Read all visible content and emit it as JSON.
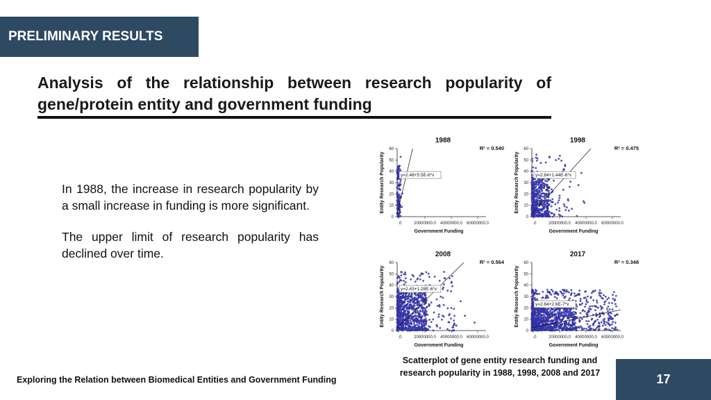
{
  "section_tag": "PRELIMINARY RESULTS",
  "title": "Analysis of the relationship between research popularity of gene/protein entity and government funding",
  "paragraphs": [
    "In 1988, the increase in research popularity by a small increase in funding is more significant.",
    "The upper limit of research popularity has declined over time."
  ],
  "caption": "Scatterplot of gene entity research funding and research popularity in 1988, 1998, 2008 and 2017",
  "footer": "Exploring the Relation between Biomedical Entities and Government Funding",
  "page_number": "17",
  "colors": {
    "accent": "#2e4a62",
    "points": "#3b3bb3"
  },
  "chart_data": [
    {
      "type": "scatter",
      "title": "1988",
      "r2": "R² = 0.540",
      "equation": "y=2.48+5.5E-6*x",
      "xlabel": "Government Funding",
      "ylabel": "Entity Research Popularity",
      "xticks": [
        ".0",
        "20000000.0",
        "40000000.0",
        "60000000.0"
      ],
      "yticks": [
        "0",
        "10",
        "20",
        "30",
        "40",
        "50",
        "60"
      ],
      "xlim": [
        0,
        60000000
      ],
      "ylim": [
        0,
        60
      ],
      "fit": {
        "intercept": 2.48,
        "slope": 5.5e-06
      },
      "clusters": [
        {
          "n": 130,
          "xmax": 2500000,
          "ymax": 45
        },
        {
          "n": 12,
          "xmax": 5000000,
          "ymax": 60
        }
      ]
    },
    {
      "type": "scatter",
      "title": "1998",
      "r2": "R² = 0.475",
      "equation": "y=2.64+1.44E-6*x",
      "xlabel": "Government Funding",
      "ylabel": "Entity Research Popularity",
      "xticks": [
        ".0",
        "20000000.0",
        "40000000.0",
        "60000000.0"
      ],
      "yticks": [
        "0",
        "10",
        "20",
        "30",
        "40",
        "50",
        "60"
      ],
      "xlim": [
        0,
        60000000
      ],
      "ylim": [
        0,
        60
      ],
      "fit": {
        "intercept": 2.64,
        "slope": 1.44e-06
      },
      "clusters": [
        {
          "n": 420,
          "xmax": 12000000,
          "ymax": 35
        },
        {
          "n": 120,
          "xmax": 25000000,
          "ymax": 55
        },
        {
          "n": 10,
          "xmax": 45000000,
          "ymax": 45
        }
      ]
    },
    {
      "type": "scatter",
      "title": "2008",
      "r2": "R² = 0.564",
      "equation": "y=2.43+1.28E-6*x",
      "xlabel": "Government Funding",
      "ylabel": "Entity Research Popularity",
      "xticks": [
        ".0",
        "20000000.0",
        "40000000.0",
        "60000000.0"
      ],
      "yticks": [
        "0",
        "10",
        "20",
        "30",
        "40",
        "50",
        "60"
      ],
      "xlim": [
        0,
        60000000
      ],
      "ylim": [
        0,
        60
      ],
      "fit": {
        "intercept": 2.43,
        "slope": 1.28e-06
      },
      "clusters": [
        {
          "n": 650,
          "xmax": 20000000,
          "ymax": 35
        },
        {
          "n": 220,
          "xmax": 40000000,
          "ymax": 52
        },
        {
          "n": 12,
          "xmax": 55000000,
          "ymax": 30
        }
      ]
    },
    {
      "type": "scatter",
      "title": "2017",
      "r2": "R² = 0.348",
      "equation": "y=2.64+2.6E-7*x",
      "xlabel": "Government Funding",
      "ylabel": "Entity Research Popularity",
      "xticks": [
        ".0",
        "20000000.0",
        "40000000.0",
        "60000000.0"
      ],
      "yticks": [
        "0",
        "10",
        "20",
        "30",
        "40",
        "50",
        "60"
      ],
      "xlim": [
        0,
        60000000
      ],
      "ylim": [
        0,
        60
      ],
      "fit": {
        "intercept": 2.64,
        "slope": 2.6e-07
      },
      "clusters": [
        {
          "n": 700,
          "xmax": 30000000,
          "ymax": 25
        },
        {
          "n": 600,
          "xmax": 58000000,
          "ymax": 36
        }
      ]
    }
  ]
}
